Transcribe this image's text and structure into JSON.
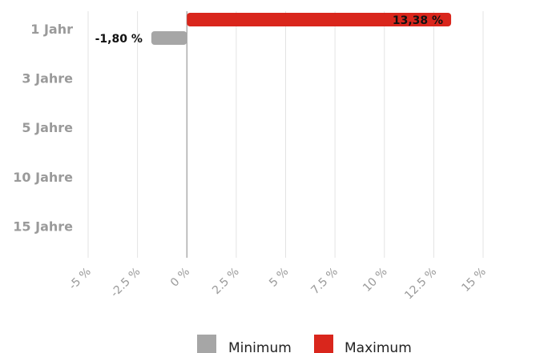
{
  "chart_data": {
    "type": "bar",
    "orientation": "horizontal",
    "categories": [
      "1 Jahr",
      "3 Jahre",
      "5 Jahre",
      "10 Jahre",
      "15 Jahre"
    ],
    "series": [
      {
        "name": "Minimum",
        "color": "#a6a6a6",
        "values": [
          -1.8,
          null,
          null,
          null,
          null
        ],
        "labels": [
          "-1,80 %",
          "",
          "",
          "",
          ""
        ]
      },
      {
        "name": "Maximum",
        "color": "#d9261c",
        "values": [
          13.38,
          null,
          null,
          null,
          null
        ],
        "labels": [
          "13,38 %",
          "",
          "",
          "",
          ""
        ]
      }
    ],
    "xlim": [
      -5,
      15
    ],
    "xticks": [
      -5,
      -2.5,
      0,
      2.5,
      5,
      7.5,
      10,
      12.5,
      15
    ],
    "xtick_labels": [
      "-5 %",
      "-2.5 %",
      "0 %",
      "2.5 %",
      "5 %",
      "7.5 %",
      "10 %",
      "12.5 %",
      "15 %"
    ],
    "grid": true,
    "legend_position": "bottom-center",
    "title": "",
    "xlabel": "",
    "ylabel": ""
  }
}
